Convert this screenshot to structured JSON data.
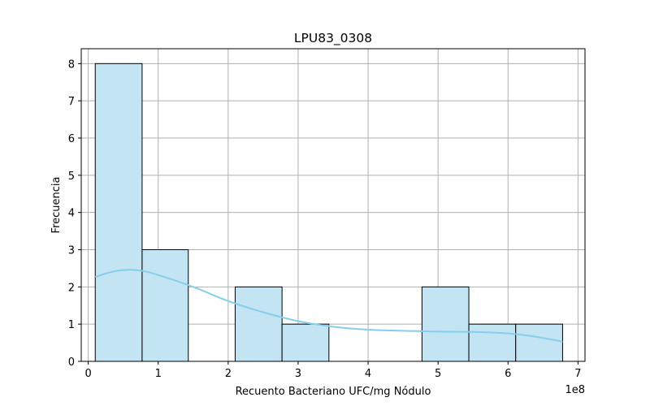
{
  "chart_data": {
    "type": "bar",
    "title": "LPU83_0308",
    "xlabel": "Recuento Bacteriano UFC/mg Nódulo",
    "ylabel": "Frecuencia",
    "x_offset_label": "1e8",
    "xlim": [
      -0.1,
      7.1
    ],
    "ylim": [
      0,
      8.4
    ],
    "x_ticks": [
      0,
      1,
      2,
      3,
      4,
      5,
      6,
      7
    ],
    "y_ticks": [
      0,
      1,
      2,
      3,
      4,
      5,
      6,
      7,
      8
    ],
    "grid": true,
    "bins": [
      {
        "x0": 0.1,
        "x1": 0.77,
        "count": 8
      },
      {
        "x0": 0.77,
        "x1": 1.43,
        "count": 3
      },
      {
        "x0": 1.43,
        "x1": 2.1,
        "count": 0
      },
      {
        "x0": 2.1,
        "x1": 2.77,
        "count": 2
      },
      {
        "x0": 2.77,
        "x1": 3.44,
        "count": 1
      },
      {
        "x0": 3.44,
        "x1": 4.11,
        "count": 0
      },
      {
        "x0": 4.11,
        "x1": 4.77,
        "count": 0
      },
      {
        "x0": 4.77,
        "x1": 5.44,
        "count": 2
      },
      {
        "x0": 5.44,
        "x1": 6.11,
        "count": 1
      },
      {
        "x0": 6.11,
        "x1": 6.78,
        "count": 1
      }
    ],
    "kde": {
      "x": [
        0.1,
        0.4,
        0.7,
        1.0,
        1.5,
        2.0,
        2.5,
        3.0,
        3.5,
        4.0,
        4.5,
        5.0,
        5.5,
        6.0,
        6.4,
        6.78
      ],
      "y": [
        2.27,
        2.43,
        2.45,
        2.32,
        2.0,
        1.62,
        1.32,
        1.08,
        0.93,
        0.85,
        0.82,
        0.8,
        0.79,
        0.75,
        0.66,
        0.53
      ]
    },
    "colors": {
      "bar_fill": "#c2e4f3",
      "bar_edge": "#000000",
      "kde_line": "#87ceeb",
      "grid": "#b0b0b0"
    }
  }
}
